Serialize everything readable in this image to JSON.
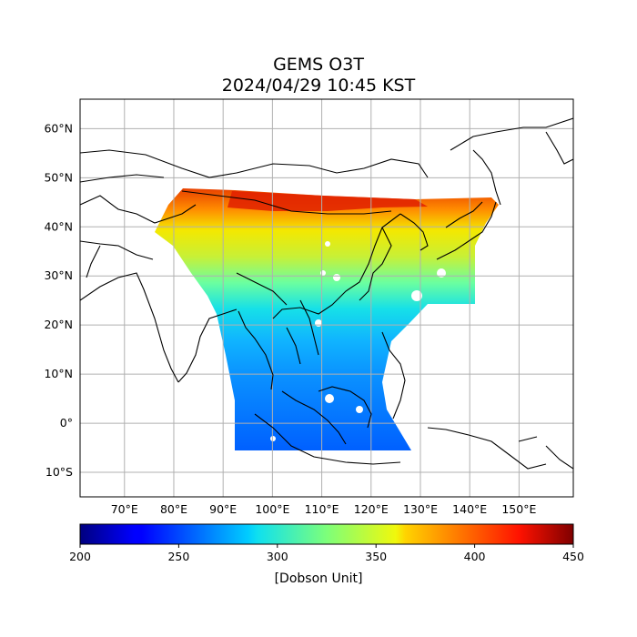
{
  "title": "GEMS O3T",
  "subtitle": "2024/04/29 10:45 KST",
  "map": {
    "lon_range": [
      61,
      161
    ],
    "lat_range": [
      -15,
      66
    ],
    "lat_ticks": [
      "60°N",
      "50°N",
      "40°N",
      "30°N",
      "20°N",
      "10°N",
      "0°",
      "10°S"
    ],
    "lat_values": [
      60,
      50,
      40,
      30,
      20,
      10,
      0,
      -10
    ],
    "lon_ticks": [
      "70°E",
      "80°E",
      "90°E",
      "100°E",
      "110°E",
      "120°E",
      "130°E",
      "140°E",
      "150°E"
    ],
    "lon_values": [
      70,
      80,
      90,
      100,
      110,
      120,
      130,
      140,
      150
    ],
    "grid": true
  },
  "colorbar": {
    "label": "[Dobson Unit]",
    "ticks": [
      "200",
      "250",
      "300",
      "350",
      "400",
      "450"
    ],
    "min": 200,
    "max": 450,
    "colormap": "jet"
  }
}
